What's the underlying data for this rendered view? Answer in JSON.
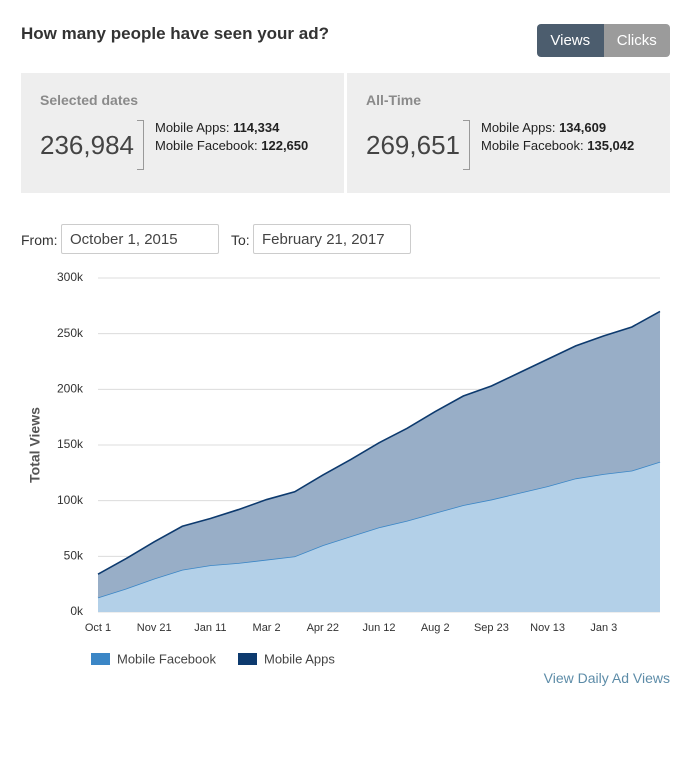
{
  "header": {
    "title": "How many people have seen your ad?"
  },
  "toggle": {
    "options": [
      "Views",
      "Clicks"
    ]
  },
  "stats": [
    {
      "label": "Selected dates",
      "total": "236,984",
      "rows": [
        {
          "label": "Mobile Apps:",
          "value": "114,334"
        },
        {
          "label": "Mobile Facebook:",
          "value": "122,650"
        }
      ]
    },
    {
      "label": "All-Time",
      "total": "269,651",
      "rows": [
        {
          "label": "Mobile Apps:",
          "value": "134,609"
        },
        {
          "label": "Mobile Facebook:",
          "value": "135,042"
        }
      ]
    }
  ],
  "dates": {
    "from_label": "From:",
    "from": "October 1, 2015",
    "to_label": "To:",
    "to": "February 21, 2017"
  },
  "link": "View Daily Ad Views",
  "chart_data": {
    "type": "area",
    "stacked": true,
    "y_label": "Total Views",
    "grid": true,
    "categories": [
      "Oct 1",
      null,
      "Nov 21",
      null,
      "Jan 11",
      null,
      "Mar 2",
      null,
      "Apr 22",
      null,
      "Jun 12",
      null,
      "Aug 2",
      null,
      "Sep 23",
      null,
      "Nov 13",
      null,
      "Jan 3",
      null,
      null
    ],
    "series": [
      {
        "name": "Mobile Facebook",
        "color": "#3b86c6",
        "fill": "#b3d0e8",
        "values": [
          13000,
          21000,
          30000,
          38000,
          42000,
          44000,
          47000,
          50000,
          60000,
          68000,
          76000,
          82000,
          89000,
          96000,
          101000,
          107000,
          113000,
          120000,
          124000,
          127000,
          135000
        ]
      },
      {
        "name": "Mobile Apps",
        "color": "#0d3a6e",
        "fill": "#98aec7",
        "values": [
          21000,
          27000,
          33000,
          39000,
          42000,
          48000,
          54000,
          58000,
          63000,
          69000,
          76000,
          83000,
          91000,
          98000,
          102000,
          108000,
          114000,
          119000,
          124000,
          129000,
          135000
        ]
      }
    ],
    "ylim": [
      0,
      300000
    ],
    "yticks": [
      {
        "value": 0,
        "label": "0k"
      },
      {
        "value": 50000,
        "label": "50k"
      },
      {
        "value": 100000,
        "label": "100k"
      },
      {
        "value": 150000,
        "label": "150k"
      },
      {
        "value": 200000,
        "label": "200k"
      },
      {
        "value": 250000,
        "label": "250k"
      },
      {
        "value": 300000,
        "label": "300k"
      }
    ]
  }
}
